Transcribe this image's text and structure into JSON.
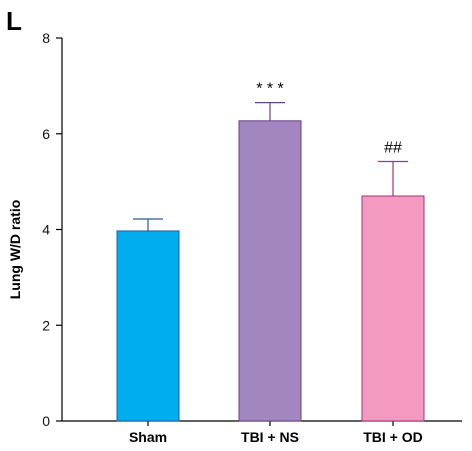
{
  "panel_label": "L",
  "chart_data": {
    "type": "bar",
    "categories": [
      "Sham",
      "TBI + NS",
      "TBI + OD"
    ],
    "values": [
      3.97,
      6.27,
      4.7
    ],
    "errors": [
      0.25,
      0.38,
      0.72
    ],
    "significance": [
      "",
      "* * *",
      "##"
    ],
    "colors": [
      "#00aeef",
      "#a186bf",
      "#f49ac1"
    ],
    "edge_colors": [
      "#2a5a9a",
      "#6a3f86",
      "#a0357a"
    ],
    "title": "",
    "xlabel": "",
    "ylabel": "Lung W/D ratio",
    "ylim": [
      0,
      8
    ],
    "yticks": [
      0,
      2,
      4,
      6,
      8
    ],
    "grid": false
  }
}
